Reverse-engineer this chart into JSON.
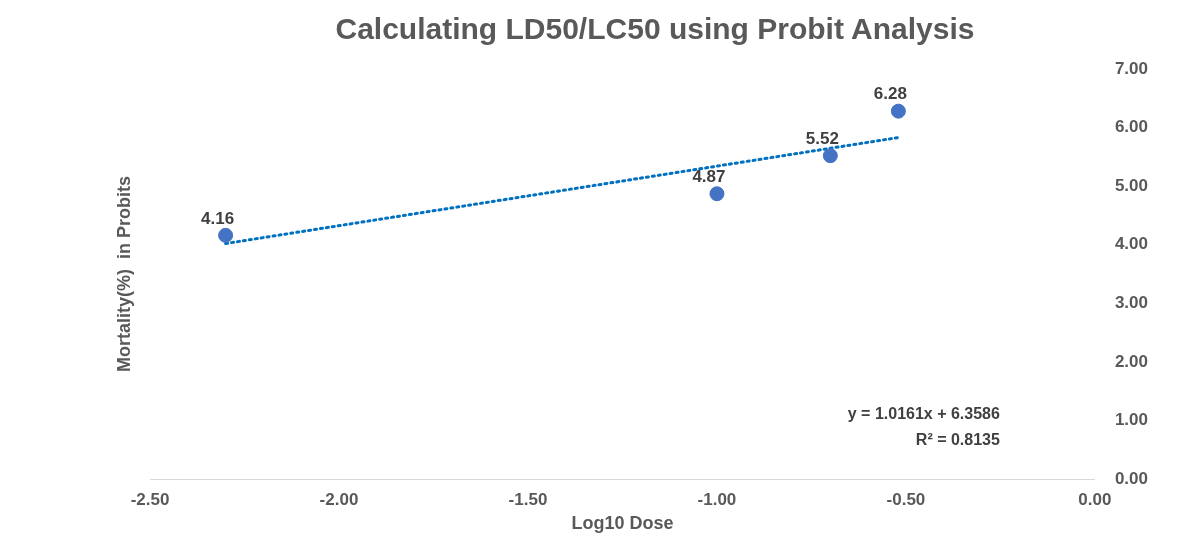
{
  "chart_data": {
    "type": "scatter",
    "title": "Calculating LD50/LC50 using Probit Analysis",
    "xlabel": "Log10 Dose",
    "ylabel": "Mortality(%)  in Probits",
    "series": [
      {
        "color": "#4472c4",
        "x": [
          -2.3,
          -1.0,
          -0.7,
          -0.52
        ],
        "values": [
          4.16,
          4.87,
          5.52,
          6.28
        ],
        "value_labels": [
          "4.16",
          "4.87",
          "5.52",
          "6.28"
        ]
      },
      {
        "type": "line",
        "color": "#0070c0",
        "line_style": "dotted",
        "marker": "none",
        "x": [
          -2.3,
          -0.52
        ],
        "values": [
          4.02,
          5.83
        ]
      }
    ],
    "xlim": [
      -2.5,
      0
    ],
    "xticks": [
      {
        "value": -2.5,
        "label": "-2.50"
      },
      {
        "value": -2,
        "label": "-2.00"
      },
      {
        "value": -1.5,
        "label": "-1.50"
      },
      {
        "value": -1,
        "label": "-1.00"
      },
      {
        "value": -0.5,
        "label": "-0.50"
      },
      {
        "value": 0,
        "label": "0.00"
      }
    ],
    "ylim": [
      0,
      7
    ],
    "yticks": [
      {
        "value": 0,
        "label": "0.00"
      },
      {
        "value": 1,
        "label": "1.00"
      },
      {
        "value": 2,
        "label": "2.00"
      },
      {
        "value": 3,
        "label": "3.00"
      },
      {
        "value": 4,
        "label": "4.00"
      },
      {
        "value": 5,
        "label": "5.00"
      },
      {
        "value": 6,
        "label": "6.00"
      },
      {
        "value": 7,
        "label": "7.00"
      }
    ],
    "marker": "circle",
    "grid": false,
    "legend": false,
    "annotations": [
      "y = 1.0161x + 6.3586",
      "R² = 0.8135"
    ]
  }
}
